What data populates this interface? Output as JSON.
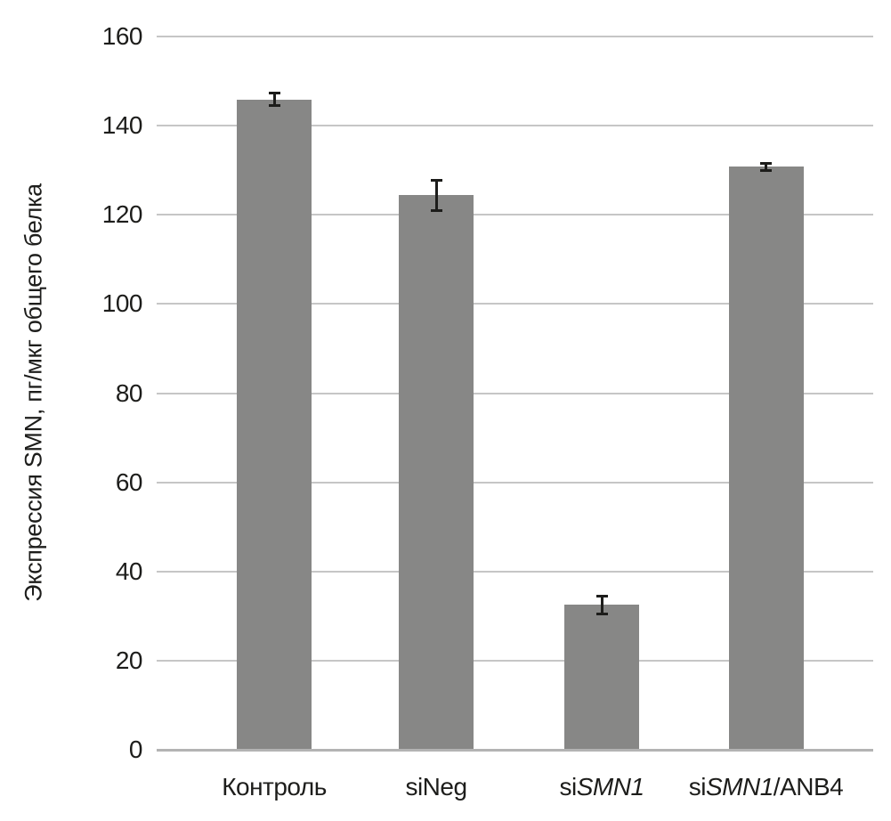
{
  "chart_data": {
    "type": "bar",
    "title": "",
    "xlabel": "",
    "ylabel": "Экспрессия SMN, пг/мкг общего белка",
    "categories": [
      "Контроль",
      "siNeg",
      "siSMN1",
      "siSMN1/ANB4"
    ],
    "categories_rich": [
      [
        {
          "t": "Контроль",
          "i": false
        }
      ],
      [
        {
          "t": "siNeg",
          "i": false
        }
      ],
      [
        {
          "t": "si",
          "i": false
        },
        {
          "t": "SMN1",
          "i": true
        }
      ],
      [
        {
          "t": "si",
          "i": false
        },
        {
          "t": "SMN1",
          "i": true
        },
        {
          "t": "/ANB4",
          "i": false
        }
      ]
    ],
    "series": [
      {
        "name": "Экспрессия SMN",
        "values": [
          145.9,
          124.4,
          32.5,
          130.8
        ],
        "errors": [
          1.5,
          3.5,
          2.1,
          0.9
        ]
      }
    ],
    "ylim": [
      0,
      160
    ],
    "yticks": [
      0,
      20,
      40,
      60,
      80,
      100,
      120,
      140,
      160
    ],
    "grid": true,
    "legend": null,
    "colors": {
      "bar": "#878786",
      "gridline": "#c6c6c6",
      "axis_line": "#b3b3b3",
      "error_bar": "#1d1d1b",
      "text": "#1d1d1b",
      "background": "#ffffff"
    }
  }
}
